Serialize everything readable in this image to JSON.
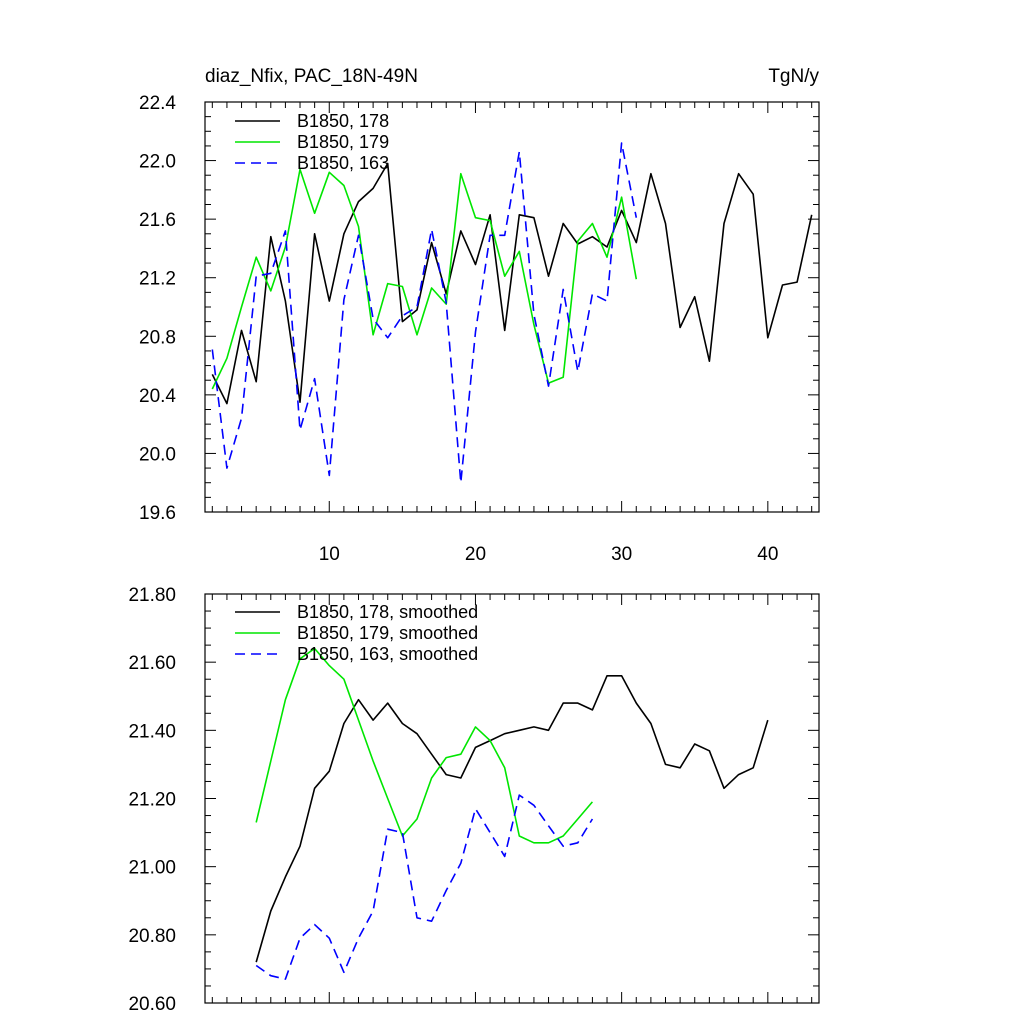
{
  "chart_data": [
    {
      "type": "line",
      "title_left": "diaz_Nfix, PAC_18N-49N",
      "title_right": "TgN/y",
      "xlim": [
        1.5,
        43.5
      ],
      "ylim": [
        19.6,
        22.4
      ],
      "xticks": [
        10,
        20,
        30,
        40
      ],
      "xticklabels": [
        "10",
        "20",
        "30",
        "40"
      ],
      "yticks": [
        19.6,
        20.0,
        20.4,
        20.8,
        21.2,
        21.6,
        22.0,
        22.4
      ],
      "yticklabels": [
        "19.6",
        "20.0",
        "20.4",
        "20.8",
        "21.2",
        "21.6",
        "22.0",
        "22.4"
      ],
      "legend_position": "top-left",
      "series": [
        {
          "name": "B1850, 178",
          "color": "#000000",
          "dash": "solid",
          "x": [
            2,
            3,
            4,
            5,
            6,
            7,
            8,
            9,
            10,
            11,
            12,
            13,
            14,
            15,
            16,
            17,
            18,
            19,
            20,
            21,
            22,
            23,
            24,
            25,
            26,
            27,
            28,
            29,
            30,
            31,
            32,
            33,
            34,
            35,
            36,
            37,
            38,
            39,
            40,
            41,
            42,
            43
          ],
          "values": [
            20.54,
            20.34,
            20.84,
            20.49,
            21.48,
            21.04,
            20.35,
            21.5,
            21.04,
            21.5,
            21.72,
            21.81,
            21.98,
            20.9,
            20.98,
            21.44,
            21.09,
            21.52,
            21.29,
            21.63,
            20.84,
            21.63,
            21.61,
            21.21,
            21.57,
            21.43,
            21.48,
            21.41,
            21.66,
            21.44,
            21.91,
            21.57,
            20.86,
            21.07,
            20.63,
            21.57,
            21.91,
            21.77,
            20.79,
            21.15,
            21.17,
            21.63
          ]
        },
        {
          "name": "B1850, 179",
          "color": "#00e600",
          "dash": "solid",
          "x": [
            2,
            3,
            4,
            5,
            6,
            7,
            8,
            9,
            10,
            11,
            12,
            13,
            14,
            15,
            16,
            17,
            18,
            19,
            20,
            21,
            22,
            23,
            24,
            25,
            26,
            27,
            28,
            29,
            30,
            31
          ],
          "values": [
            20.44,
            20.65,
            21.0,
            21.34,
            21.11,
            21.41,
            21.94,
            21.64,
            21.92,
            21.83,
            21.55,
            20.81,
            21.16,
            21.14,
            20.81,
            21.13,
            21.02,
            21.91,
            21.61,
            21.59,
            21.21,
            21.38,
            20.88,
            20.48,
            20.52,
            21.45,
            21.57,
            21.34,
            21.75,
            21.19
          ]
        },
        {
          "name": "B1850, 163",
          "color": "#0000ff",
          "dash": "dashed",
          "x": [
            2,
            3,
            4,
            5,
            6,
            7,
            8,
            9,
            10,
            11,
            12,
            13,
            14,
            15,
            16,
            17,
            18,
            19,
            20,
            21,
            22,
            23,
            24,
            25,
            26,
            27,
            28,
            29,
            30,
            31
          ],
          "values": [
            20.71,
            19.9,
            20.24,
            21.21,
            21.23,
            21.52,
            20.16,
            20.51,
            19.85,
            21.05,
            21.49,
            20.92,
            20.79,
            20.94,
            21.0,
            21.53,
            21.03,
            19.8,
            20.83,
            21.49,
            21.49,
            22.06,
            20.95,
            20.46,
            21.12,
            20.56,
            21.09,
            21.04,
            22.12,
            21.61
          ]
        }
      ]
    },
    {
      "type": "line",
      "xlim": [
        1.5,
        43.5
      ],
      "ylim": [
        20.6,
        21.8
      ],
      "xticks": [
        10,
        20,
        30,
        40
      ],
      "yticks": [
        20.6,
        20.8,
        21.0,
        21.2,
        21.4,
        21.6,
        21.8
      ],
      "yticklabels": [
        "20.60",
        "20.80",
        "21.00",
        "21.20",
        "21.40",
        "21.60",
        "21.80"
      ],
      "legend_position": "top-left",
      "series": [
        {
          "name": "B1850, 178, smoothed",
          "color": "#000000",
          "dash": "solid",
          "x": [
            5,
            6,
            7,
            8,
            9,
            10,
            11,
            12,
            13,
            14,
            15,
            16,
            17,
            18,
            19,
            20,
            21,
            22,
            23,
            24,
            25,
            26,
            27,
            28,
            29,
            30,
            31,
            32,
            33,
            34,
            35,
            36,
            37,
            38,
            39,
            40
          ],
          "values": [
            20.72,
            20.87,
            20.97,
            21.06,
            21.23,
            21.28,
            21.42,
            21.49,
            21.43,
            21.48,
            21.42,
            21.39,
            21.33,
            21.27,
            21.26,
            21.35,
            21.37,
            21.39,
            21.4,
            21.41,
            21.4,
            21.48,
            21.48,
            21.46,
            21.56,
            21.56,
            21.48,
            21.42,
            21.3,
            21.29,
            21.36,
            21.34,
            21.23,
            21.27,
            21.29,
            21.43
          ]
        },
        {
          "name": "B1850, 179, smoothed",
          "color": "#00e600",
          "dash": "solid",
          "x": [
            5,
            6,
            7,
            8,
            9,
            10,
            11,
            12,
            13,
            14,
            15,
            16,
            17,
            18,
            19,
            20,
            21,
            22,
            23,
            24,
            25,
            26,
            27,
            28
          ],
          "values": [
            21.13,
            21.31,
            21.49,
            21.61,
            21.64,
            21.59,
            21.55,
            21.43,
            21.31,
            21.2,
            21.09,
            21.14,
            21.26,
            21.32,
            21.33,
            21.41,
            21.37,
            21.29,
            21.09,
            21.07,
            21.07,
            21.09,
            21.14,
            21.19
          ]
        },
        {
          "name": "B1850, 163, smoothed",
          "color": "#0000ff",
          "dash": "dashed",
          "x": [
            5,
            6,
            7,
            8,
            9,
            10,
            11,
            12,
            13,
            14,
            15,
            16,
            17,
            18,
            19,
            20,
            21,
            22,
            23,
            24,
            25,
            26,
            27,
            28
          ],
          "values": [
            20.71,
            20.68,
            20.67,
            20.79,
            20.83,
            20.79,
            20.69,
            20.79,
            20.87,
            21.11,
            21.1,
            20.85,
            20.84,
            20.93,
            21.01,
            21.17,
            21.1,
            21.03,
            21.21,
            21.18,
            21.12,
            21.06,
            21.07,
            21.14
          ]
        }
      ]
    }
  ]
}
